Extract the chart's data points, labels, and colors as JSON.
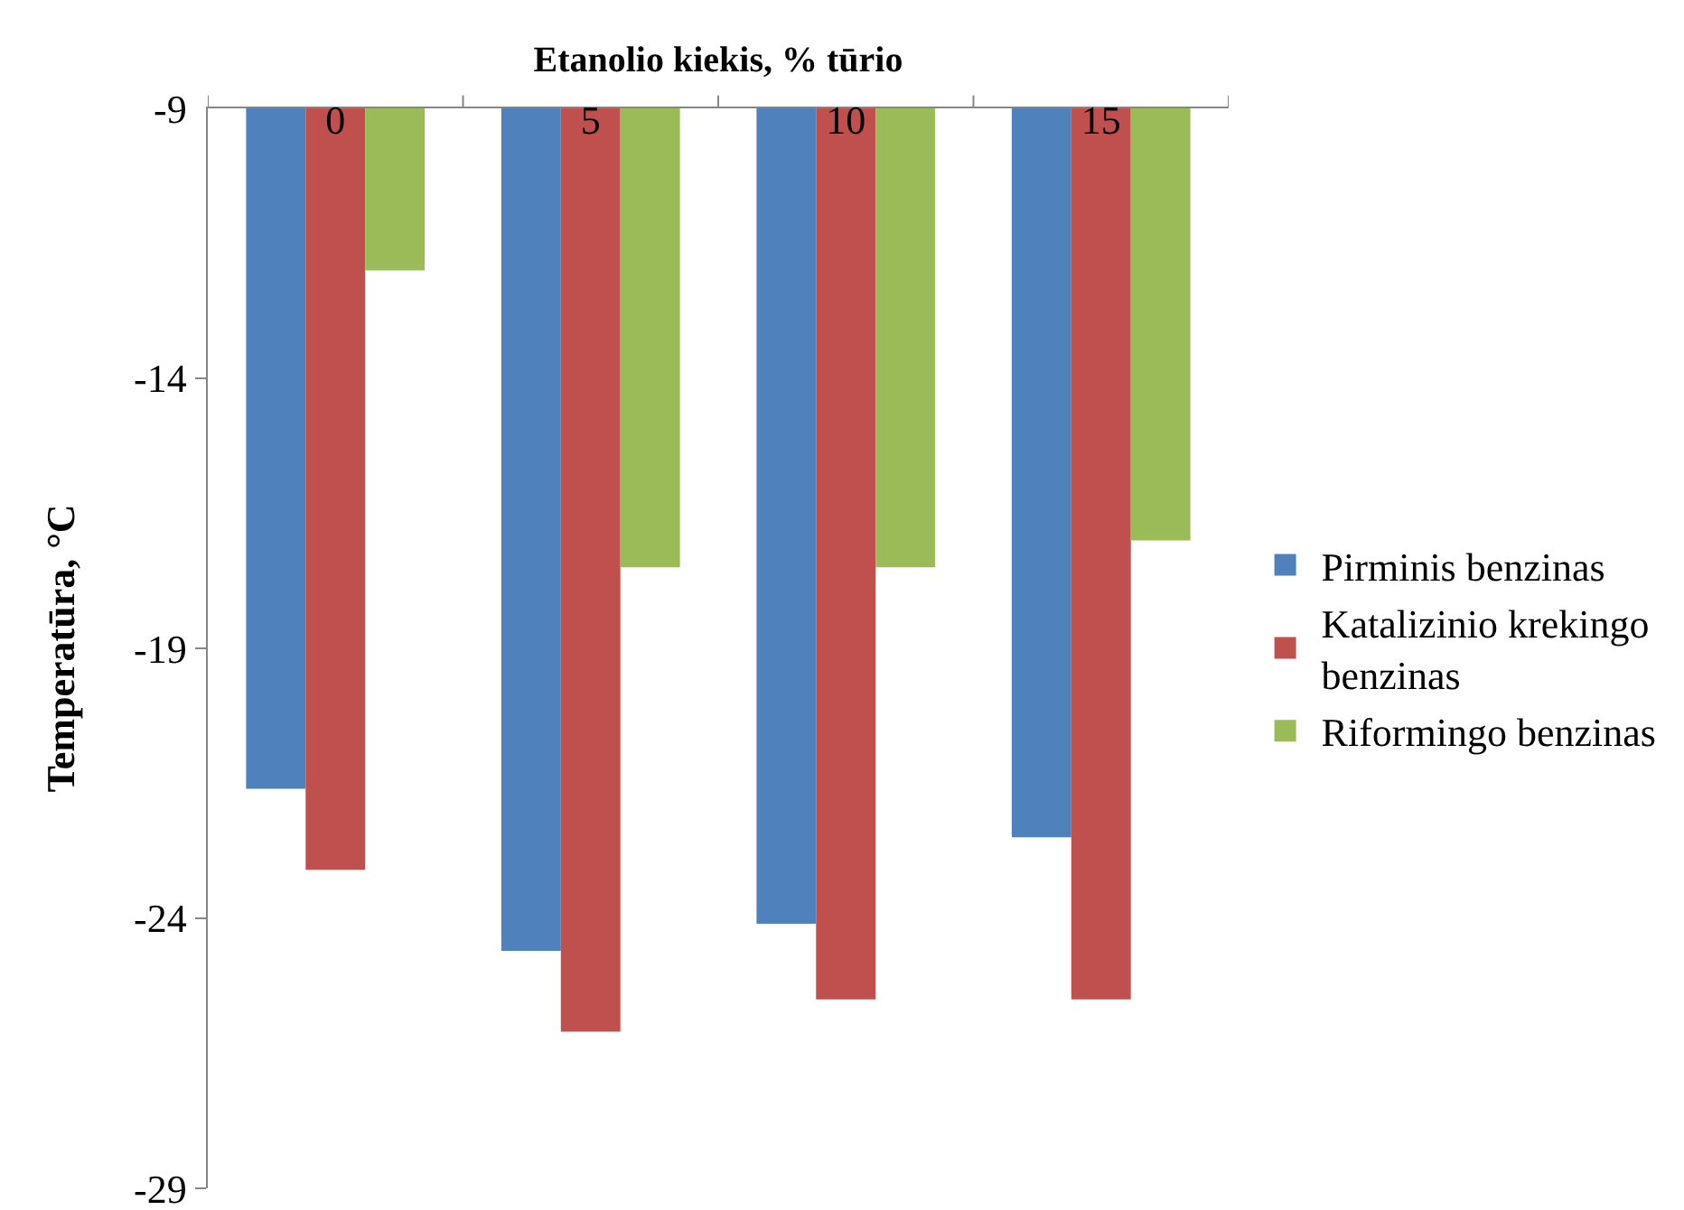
{
  "chart_data": {
    "type": "bar",
    "xlabel": "Etanolio kiekis, % tūrio",
    "ylabel": "Temperatūra, °C",
    "categories": [
      "0",
      "5",
      "10",
      "15"
    ],
    "series": [
      {
        "name": "Pirminis benzinas",
        "color": "#4f81bd",
        "values": [
          -21.6,
          -24.6,
          -24.1,
          -22.5
        ]
      },
      {
        "name": "Katalizinio krekingo benzinas",
        "color": "#c0504d",
        "values": [
          -23.1,
          -26.1,
          -25.5,
          -25.5
        ]
      },
      {
        "name": "Riformingo benzinas",
        "color": "#9bbb59",
        "values": [
          -12.0,
          -17.5,
          -17.5,
          -17.0
        ]
      }
    ],
    "ylim": [
      -29,
      -9
    ],
    "yticks": [
      -9,
      -14,
      -19,
      -24,
      -29
    ],
    "legend": "right"
  }
}
